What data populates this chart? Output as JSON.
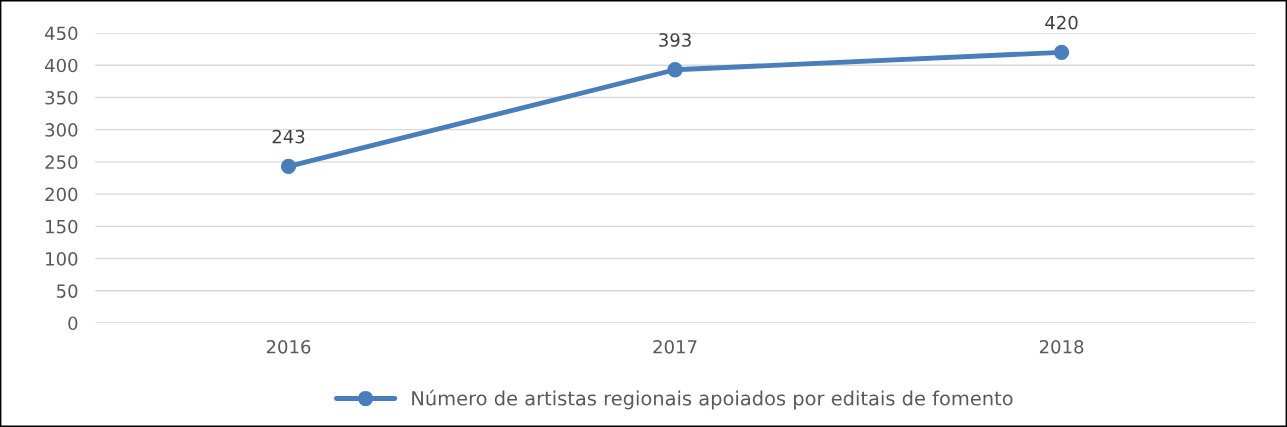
{
  "chart_data": {
    "type": "line",
    "categories": [
      "2016",
      "2017",
      "2018"
    ],
    "series": [
      {
        "name": "Número de artistas regionais apoiados por editais de fomento",
        "color": "#4a7ebb",
        "values": [
          243,
          393,
          420
        ]
      }
    ],
    "ylim": [
      0,
      450
    ],
    "yticks": [
      0,
      50,
      100,
      150,
      200,
      250,
      300,
      350,
      400,
      450
    ],
    "grid": "y",
    "legend": "bottom",
    "marker": "circle",
    "data_labels": true
  }
}
